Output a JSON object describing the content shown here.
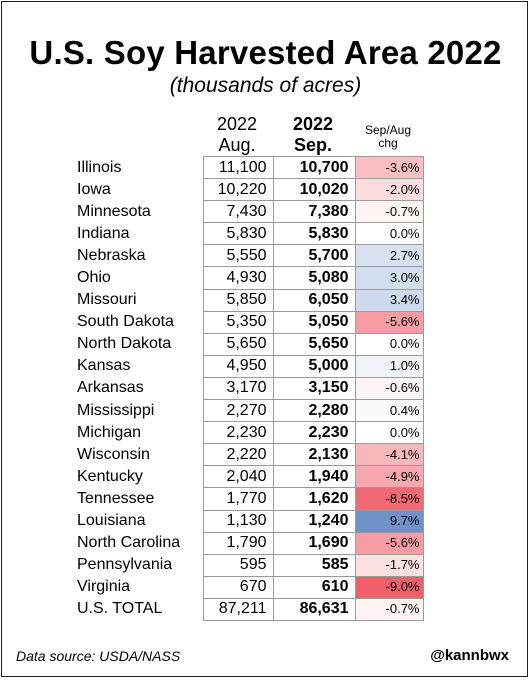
{
  "title": "U.S. Soy Harvested Area 2022",
  "subtitle": "(thousands of acres)",
  "headers": {
    "aug_line1": "2022",
    "aug_line2": "Aug.",
    "sep_line1": "2022",
    "sep_line2": "Sep.",
    "chg_line1": "Sep/Aug",
    "chg_line2": "chg"
  },
  "rows": [
    {
      "state": "Illinois",
      "aug": "11,100",
      "sep": "10,700",
      "chg": "-3.6%"
    },
    {
      "state": "Iowa",
      "aug": "10,220",
      "sep": "10,020",
      "chg": "-2.0%"
    },
    {
      "state": "Minnesota",
      "aug": "7,430",
      "sep": "7,380",
      "chg": "-0.7%"
    },
    {
      "state": "Indiana",
      "aug": "5,830",
      "sep": "5,830",
      "chg": "0.0%"
    },
    {
      "state": "Nebraska",
      "aug": "5,550",
      "sep": "5,700",
      "chg": "2.7%"
    },
    {
      "state": "Ohio",
      "aug": "4,930",
      "sep": "5,080",
      "chg": "3.0%"
    },
    {
      "state": "Missouri",
      "aug": "5,850",
      "sep": "6,050",
      "chg": "3.4%"
    },
    {
      "state": "South Dakota",
      "aug": "5,350",
      "sep": "5,050",
      "chg": "-5.6%"
    },
    {
      "state": "North Dakota",
      "aug": "5,650",
      "sep": "5,650",
      "chg": "0.0%"
    },
    {
      "state": "Kansas",
      "aug": "4,950",
      "sep": "5,000",
      "chg": "1.0%"
    },
    {
      "state": "Arkansas",
      "aug": "3,170",
      "sep": "3,150",
      "chg": "-0.6%"
    },
    {
      "state": "Mississippi",
      "aug": "2,270",
      "sep": "2,280",
      "chg": "0.4%"
    },
    {
      "state": "Michigan",
      "aug": "2,230",
      "sep": "2,230",
      "chg": "0.0%"
    },
    {
      "state": "Wisconsin",
      "aug": "2,220",
      "sep": "2,130",
      "chg": "-4.1%"
    },
    {
      "state": "Kentucky",
      "aug": "2,040",
      "sep": "1,940",
      "chg": "-4.9%"
    },
    {
      "state": "Tennessee",
      "aug": "1,770",
      "sep": "1,620",
      "chg": "-8.5%"
    },
    {
      "state": "Louisiana",
      "aug": "1,130",
      "sep": "1,240",
      "chg": "9.7%"
    },
    {
      "state": "North Carolina",
      "aug": "1,790",
      "sep": "1,690",
      "chg": "-5.6%"
    },
    {
      "state": "Pennsylvania",
      "aug": "595",
      "sep": "585",
      "chg": "-1.7%"
    },
    {
      "state": "Virginia",
      "aug": "670",
      "sep": "610",
      "chg": "-9.0%"
    },
    {
      "state": "U.S. TOTAL",
      "aug": "87,211",
      "sep": "86,631",
      "chg": "-0.7%"
    }
  ],
  "footer": {
    "source": "Data source: USDA/NASS",
    "handle": "@kannbwx"
  },
  "colors": {
    "negative": "#f0606a",
    "positive": "#6f93c9",
    "border": "#9a9a9a"
  }
}
